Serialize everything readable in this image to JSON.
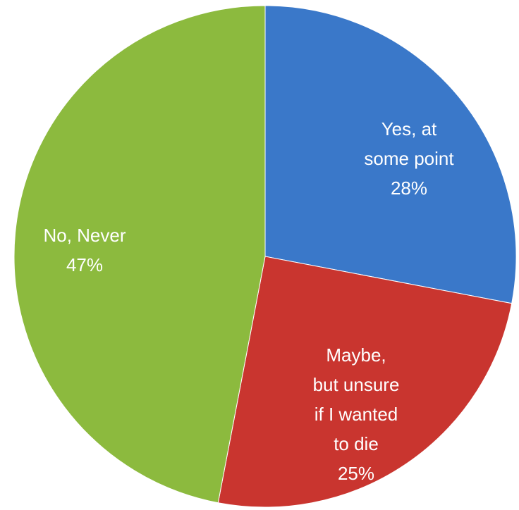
{
  "chart_data": {
    "type": "pie",
    "categories": [
      "Yes, at some point",
      "Maybe, but unsure if I wanted to die",
      "No, Never"
    ],
    "values": [
      28,
      25,
      47
    ],
    "value_labels": [
      "28%",
      "25%",
      "47%"
    ],
    "colors": [
      "#3a78c9",
      "#c9352f",
      "#8cba3e"
    ]
  }
}
